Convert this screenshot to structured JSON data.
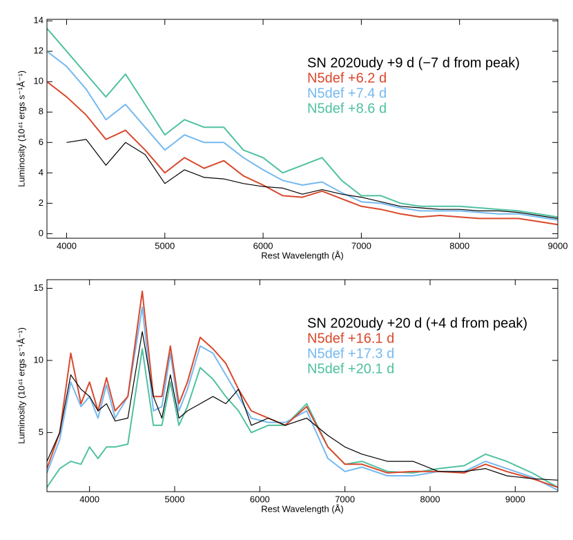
{
  "chart_data": [
    {
      "type": "line",
      "x_label": "Rest Wavelength (Å)",
      "y_label": "Luminosity (10⁴¹ ergs s⁻¹Å⁻¹)",
      "legend": "upper right",
      "x": [
        3800,
        4000,
        4200,
        4400,
        4600,
        4800,
        5000,
        5200,
        5400,
        5600,
        5800,
        6000,
        6200,
        6400,
        6600,
        6800,
        7000,
        7200,
        7400,
        7600,
        7800,
        8000,
        8200,
        8400,
        8600,
        8800,
        9000
      ],
      "series": [
        {
          "name": "SN 2020udy +9 d (−7 d from peak)",
          "color": "#000000",
          "values": [
            null,
            6,
            6.2,
            4.5,
            6,
            5.2,
            3.3,
            4.2,
            3.7,
            3.6,
            3.3,
            3.1,
            3,
            2.6,
            2.9,
            2.6,
            2.4,
            2.1,
            1.8,
            1.7,
            1.6,
            1.6,
            1.5,
            1.5,
            1.4,
            1.2,
            1.0
          ]
        },
        {
          "name": "N5def +6.2 d",
          "color": "#d9472b",
          "values": [
            10,
            9,
            7.8,
            6.2,
            6.8,
            5.5,
            4,
            5,
            4.3,
            4.8,
            3.8,
            3.2,
            2.5,
            2.4,
            2.8,
            2.3,
            1.8,
            1.6,
            1.3,
            1.1,
            1.2,
            1.1,
            1.0,
            1.0,
            1.0,
            0.8,
            0.6
          ]
        },
        {
          "name": "N5def +7.4 d",
          "color": "#74b9f0",
          "values": [
            12,
            11,
            9.5,
            7.5,
            8.5,
            7,
            5.5,
            6.5,
            6,
            6,
            5,
            4.2,
            3.5,
            3.2,
            3.4,
            2.7,
            2.1,
            2,
            1.7,
            1.5,
            1.5,
            1.5,
            1.4,
            1.3,
            1.3,
            1.1,
            0.9
          ]
        },
        {
          "name": "N5def +8.6 d",
          "color": "#4fc1a0",
          "values": [
            13.5,
            12,
            10.5,
            9,
            10.5,
            8.5,
            6.5,
            7.5,
            7,
            7,
            5.5,
            5,
            4,
            4.5,
            5,
            3.5,
            2.5,
            2.5,
            2,
            1.8,
            1.8,
            1.8,
            1.7,
            1.6,
            1.5,
            1.3,
            1.1
          ]
        }
      ],
      "xlim": [
        3800,
        9000
      ],
      "xticks": [
        4000,
        5000,
        6000,
        7000,
        8000,
        9000
      ],
      "ylim": [
        -0.3,
        14.1
      ],
      "yticks": [
        0,
        2,
        4,
        6,
        8,
        10,
        12,
        14
      ]
    },
    {
      "type": "line",
      "x_label": "Rest Wavelength (Å)",
      "y_label": "Luminosity (10⁴¹ ergs s⁻¹Å⁻¹)",
      "legend": "upper right",
      "x": [
        3500,
        3650,
        3780,
        3900,
        4000,
        4100,
        4200,
        4300,
        4450,
        4620,
        4750,
        4850,
        4950,
        5050,
        5150,
        5300,
        5450,
        5600,
        5750,
        5900,
        6100,
        6300,
        6550,
        6800,
        7000,
        7200,
        7500,
        7800,
        8100,
        8400,
        8650,
        8900,
        9200,
        9500
      ],
      "series": [
        {
          "name": "SN 2020udy +20 d (+4 d from peak)",
          "color": "#000000",
          "values": [
            3,
            5,
            9,
            8,
            7.5,
            6.5,
            7,
            5.8,
            6,
            12,
            7.5,
            6,
            9,
            6,
            6.5,
            7,
            7.5,
            7,
            8,
            5.5,
            6,
            5.5,
            6,
            4.8,
            4.0,
            3.5,
            3.0,
            3.0,
            2.3,
            2.3,
            2.5,
            2.0,
            1.8,
            1.7
          ]
        },
        {
          "name": "N5def +16.1 d",
          "color": "#d9472b",
          "values": [
            2.5,
            5,
            10.5,
            7,
            8.5,
            6.5,
            8.8,
            6.5,
            7.5,
            14.8,
            7.5,
            7.5,
            11,
            7,
            8.5,
            11.6,
            10.8,
            9.8,
            8,
            6.5,
            6,
            5.5,
            6.8,
            4,
            2.8,
            2.8,
            2.2,
            2.3,
            2.3,
            2.2,
            2.8,
            2.3,
            1.8,
            1.2
          ]
        },
        {
          "name": "N5def +17.3 d",
          "color": "#74b9f0",
          "values": [
            2.2,
            4.5,
            8.5,
            6.8,
            7.5,
            6,
            8.3,
            6,
            7.5,
            13.7,
            6.5,
            6.8,
            10.5,
            6.5,
            8,
            11,
            10.5,
            9,
            7.5,
            6,
            5.7,
            5.7,
            6.5,
            3.2,
            2.3,
            2.6,
            2.0,
            2.0,
            2.3,
            2.3,
            3.0,
            2.5,
            1.9,
            1.0
          ]
        },
        {
          "name": "N5def +20.1 d",
          "color": "#4fc1a0",
          "values": [
            1.2,
            2.5,
            3.0,
            2.8,
            4.0,
            3.2,
            4.0,
            4.0,
            4.2,
            10.8,
            5.5,
            5.5,
            8.5,
            5.5,
            6.8,
            9.5,
            8.7,
            7.5,
            6.5,
            5,
            5.5,
            5.5,
            7,
            4,
            2.8,
            3.0,
            2.3,
            2.2,
            2.5,
            2.7,
            3.5,
            3.0,
            2.2,
            1.2
          ]
        }
      ],
      "xlim": [
        3500,
        9500
      ],
      "xticks": [
        4000,
        5000,
        6000,
        7000,
        8000,
        9000
      ],
      "ylim": [
        0.9,
        15.6
      ],
      "yticks": [
        5,
        10,
        15
      ]
    }
  ]
}
